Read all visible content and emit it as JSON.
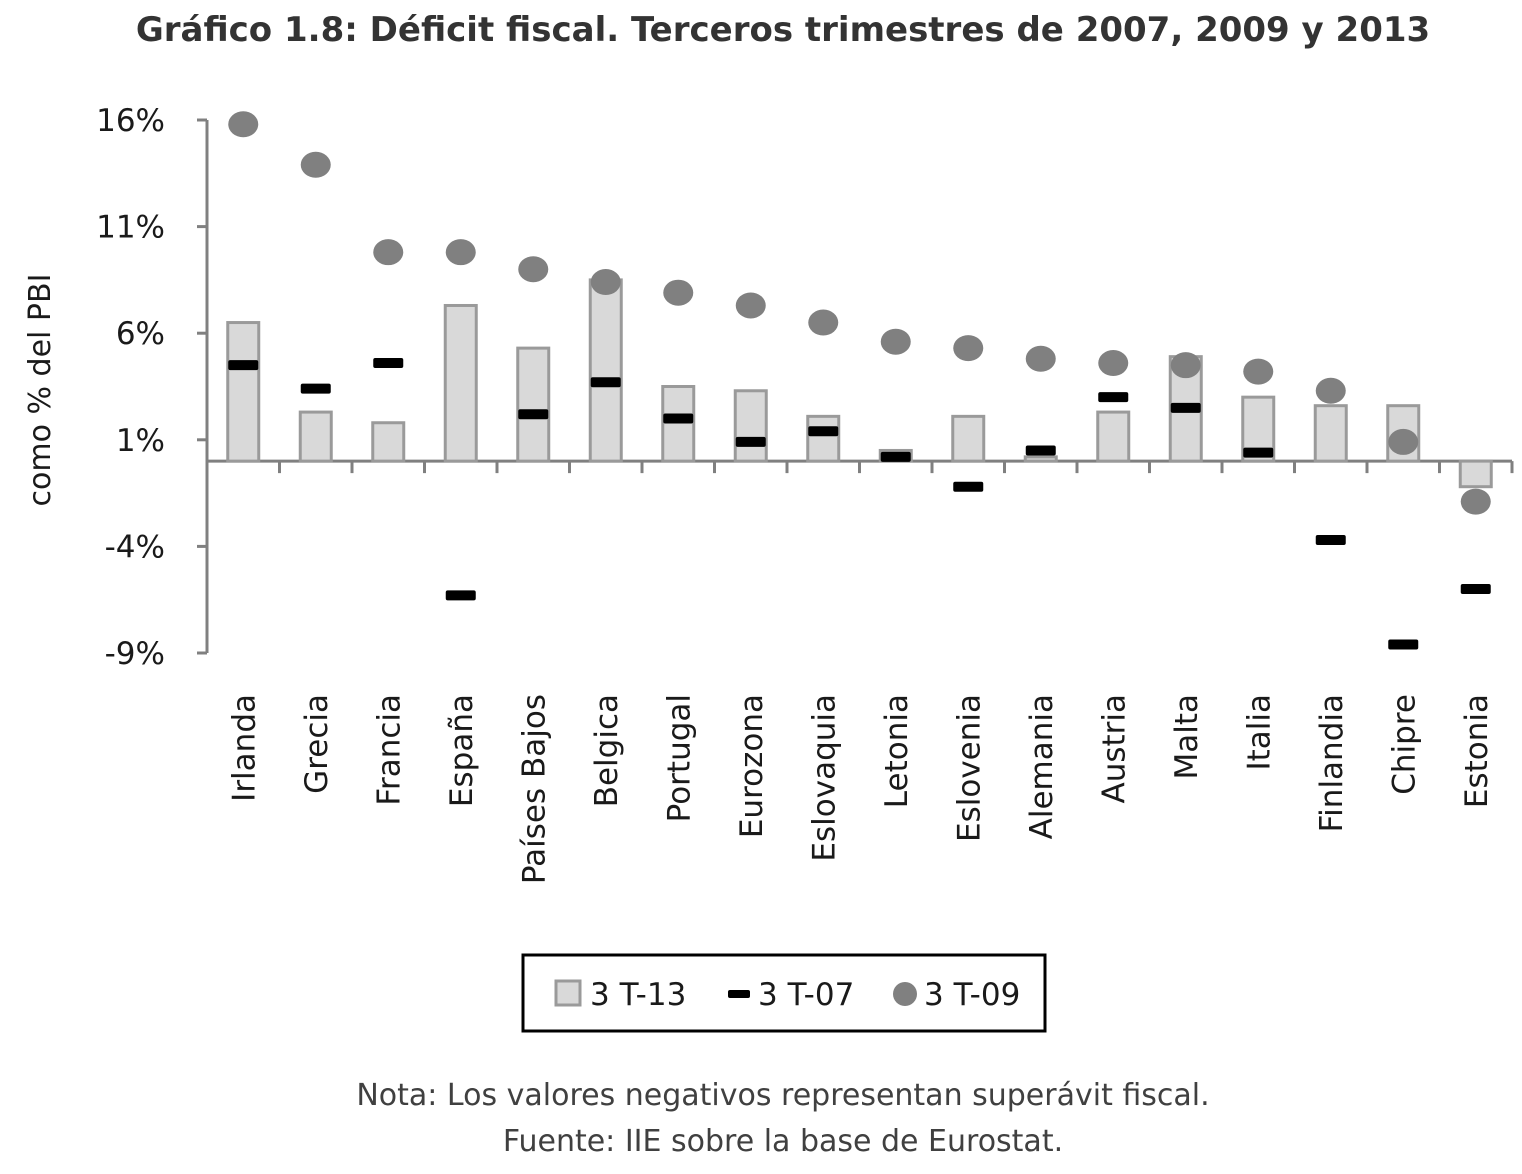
{
  "chart_data": {
    "type": "bar",
    "title": "Gráfico 1.8: Déficit fiscal. Terceros trimestres de 2007, 2009 y 2013",
    "ylabel": "como % del PBI",
    "xlabel": "",
    "ylim": [
      -9,
      16
    ],
    "yticks": [
      16,
      11,
      6,
      1,
      -4,
      -9
    ],
    "ytick_labels": [
      "16%",
      "11%",
      "6%",
      "1%",
      "-4%",
      "-9%"
    ],
    "grid": false,
    "legend_position": "bottom",
    "categories": [
      "Irlanda",
      "Grecia",
      "Francia",
      "España",
      "Países Bajos",
      "Belgica",
      "Portugal",
      "Eurozona",
      "Eslovaquia",
      "Letonia",
      "Eslovenia",
      "Alemania",
      "Austria",
      "Malta",
      "Italia",
      "Finlandia",
      "Chipre",
      "Estonia"
    ],
    "series": [
      {
        "name": "3 T-13",
        "kind": "bar",
        "values": [
          6.5,
          2.3,
          1.8,
          7.3,
          5.3,
          8.5,
          3.5,
          3.3,
          2.1,
          0.5,
          2.1,
          0.2,
          2.3,
          4.9,
          3.0,
          2.6,
          2.6,
          -1.2
        ]
      },
      {
        "name": "3 T-07",
        "kind": "dash",
        "values": [
          4.5,
          3.4,
          4.6,
          -6.3,
          2.2,
          3.7,
          2.0,
          0.9,
          1.4,
          0.2,
          -1.2,
          0.5,
          3.0,
          2.5,
          0.4,
          -3.7,
          -8.6,
          -6.0
        ]
      },
      {
        "name": "3 T-09",
        "kind": "dot",
        "values": [
          15.8,
          13.9,
          9.8,
          9.8,
          9.0,
          8.4,
          7.9,
          7.3,
          6.5,
          5.6,
          5.3,
          4.8,
          4.6,
          4.5,
          4.2,
          3.3,
          0.9,
          -1.9
        ]
      }
    ],
    "colors": {
      "bar_fill": "#d9d9d9",
      "bar_stroke": "#9a9a9a",
      "dash": "#000000",
      "dot": "#808080",
      "axis": "#808080"
    }
  },
  "footer": {
    "note": "Nota: Los valores negativos representan superávit fiscal.",
    "source": "Fuente: IIE sobre la base de Eurostat."
  }
}
